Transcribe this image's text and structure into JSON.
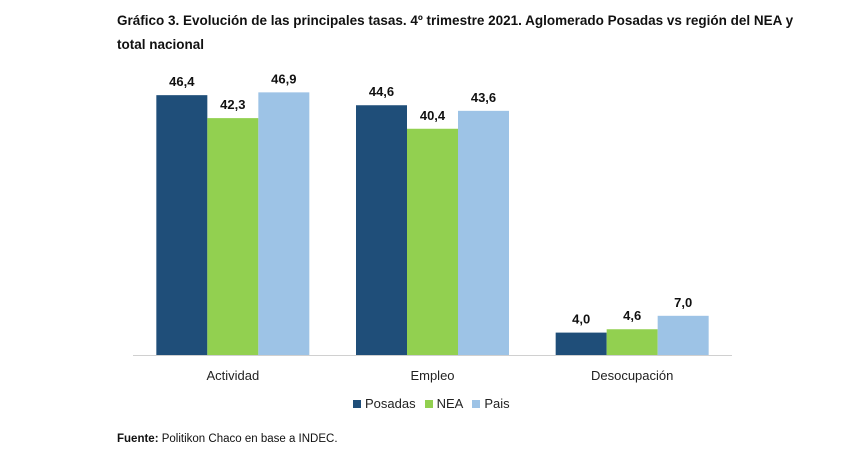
{
  "title": "Gráfico 3. Evolución de las principales tasas. 4º trimestre 2021. Aglomerado Posadas vs región del NEA y total nacional",
  "source_label": "Fuente:",
  "source_text": " Politikon Chaco en base a INDEC.",
  "chart_data": {
    "type": "bar",
    "title": "Gráfico 3. Evolución de las principales tasas. 4º trimestre 2021. Aglomerado Posadas vs región del NEA y total nacional",
    "xlabel": "",
    "ylabel": "",
    "categories": [
      "Actividad",
      "Empleo",
      "Desocupación"
    ],
    "series": [
      {
        "name": "Posadas",
        "color": "#1f4e79",
        "values": [
          46.4,
          44.6,
          4.0
        ],
        "labels": [
          "46,4",
          "44,6",
          "4,0"
        ]
      },
      {
        "name": "NEA",
        "color": "#92d050",
        "values": [
          42.3,
          40.4,
          4.6
        ],
        "labels": [
          "42,3",
          "40,4",
          "4,6"
        ]
      },
      {
        "name": "Pais",
        "color": "#9dc3e6",
        "values": [
          46.9,
          43.6,
          7.0
        ],
        "labels": [
          "46,9",
          "43,6",
          "7,0"
        ]
      }
    ],
    "ylim": [
      0,
      50
    ],
    "grid": false,
    "legend": "bottom-center",
    "y_axis_visible": false
  }
}
